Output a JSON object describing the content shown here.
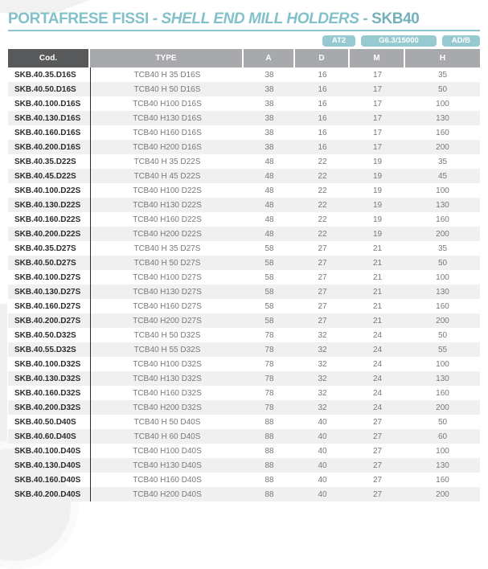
{
  "colors": {
    "teal-title": "#82c1c9",
    "teal-model": "#74b0ba",
    "teal-line": "#8cc4cb",
    "teal-badge": "#97cad0",
    "header-dark": "#58595b",
    "header-gray": "#a7a9ac",
    "row-alt": "#f0f0f1",
    "text-dark": "#2d2d2f",
    "text-gray": "#77787b"
  },
  "title": {
    "italian": "PORTAFRESE FISSI",
    "separator1": " - ",
    "english": "SHELL END MILL HOLDERS",
    "separator2": " - ",
    "model": "SKB40"
  },
  "badges": [
    "AT2",
    "G6.3/15000",
    "AD/B"
  ],
  "table": {
    "columns": [
      "Cod.",
      "TYPE",
      "A",
      "D",
      "M",
      "H"
    ],
    "rows": [
      {
        "cod": "SKB.40.35.D16S",
        "type": "TCB40 H 35 D16S",
        "a": "38",
        "d": "16",
        "m": "17",
        "h": "35"
      },
      {
        "cod": "SKB.40.50.D16S",
        "type": "TCB40 H 50 D16S",
        "a": "38",
        "d": "16",
        "m": "17",
        "h": "50"
      },
      {
        "cod": "SKB.40.100.D16S",
        "type": "TCB40 H100 D16S",
        "a": "38",
        "d": "16",
        "m": "17",
        "h": "100"
      },
      {
        "cod": "SKB.40.130.D16S",
        "type": "TCB40 H130 D16S",
        "a": "38",
        "d": "16",
        "m": "17",
        "h": "130"
      },
      {
        "cod": "SKB.40.160.D16S",
        "type": "TCB40 H160 D16S",
        "a": "38",
        "d": "16",
        "m": "17",
        "h": "160"
      },
      {
        "cod": "SKB.40.200.D16S",
        "type": "TCB40 H200 D16S",
        "a": "38",
        "d": "16",
        "m": "17",
        "h": "200"
      },
      {
        "cod": "SKB.40.35.D22S",
        "type": "TCB40 H 35 D22S",
        "a": "48",
        "d": "22",
        "m": "19",
        "h": "35"
      },
      {
        "cod": "SKB.40.45.D22S",
        "type": "TCB40 H 45 D22S",
        "a": "48",
        "d": "22",
        "m": "19",
        "h": "45"
      },
      {
        "cod": "SKB.40.100.D22S",
        "type": "TCB40 H100 D22S",
        "a": "48",
        "d": "22",
        "m": "19",
        "h": "100"
      },
      {
        "cod": "SKB.40.130.D22S",
        "type": "TCB40 H130 D22S",
        "a": "48",
        "d": "22",
        "m": "19",
        "h": "130"
      },
      {
        "cod": "SKB.40.160.D22S",
        "type": "TCB40 H160 D22S",
        "a": "48",
        "d": "22",
        "m": "19",
        "h": "160"
      },
      {
        "cod": "SKB.40.200.D22S",
        "type": "TCB40 H200 D22S",
        "a": "48",
        "d": "22",
        "m": "19",
        "h": "200"
      },
      {
        "cod": "SKB.40.35.D27S",
        "type": "TCB40 H 35 D27S",
        "a": "58",
        "d": "27",
        "m": "21",
        "h": "35"
      },
      {
        "cod": "SKB.40.50.D27S",
        "type": "TCB40 H 50 D27S",
        "a": "58",
        "d": "27",
        "m": "21",
        "h": "50"
      },
      {
        "cod": "SKB.40.100.D27S",
        "type": "TCB40 H100 D27S",
        "a": "58",
        "d": "27",
        "m": "21",
        "h": "100"
      },
      {
        "cod": "SKB.40.130.D27S",
        "type": "TCB40 H130 D27S",
        "a": "58",
        "d": "27",
        "m": "21",
        "h": "130"
      },
      {
        "cod": "SKB.40.160.D27S",
        "type": "TCB40 H160 D27S",
        "a": "58",
        "d": "27",
        "m": "21",
        "h": "160"
      },
      {
        "cod": "SKB.40.200.D27S",
        "type": "TCB40 H200 D27S",
        "a": "58",
        "d": "27",
        "m": "21",
        "h": "200"
      },
      {
        "cod": "SKB.40.50.D32S",
        "type": "TCB40 H 50 D32S",
        "a": "78",
        "d": "32",
        "m": "24",
        "h": "50"
      },
      {
        "cod": "SKB.40.55.D32S",
        "type": "TCB40 H 55 D32S",
        "a": "78",
        "d": "32",
        "m": "24",
        "h": "55"
      },
      {
        "cod": "SKB.40.100.D32S",
        "type": "TCB40 H100 D32S",
        "a": "78",
        "d": "32",
        "m": "24",
        "h": "100"
      },
      {
        "cod": "SKB.40.130.D32S",
        "type": "TCB40 H130 D32S",
        "a": "78",
        "d": "32",
        "m": "24",
        "h": "130"
      },
      {
        "cod": "SKB.40.160.D32S",
        "type": "TCB40 H160 D32S",
        "a": "78",
        "d": "32",
        "m": "24",
        "h": "160"
      },
      {
        "cod": "SKB.40.200.D32S",
        "type": "TCB40 H200 D32S",
        "a": "78",
        "d": "32",
        "m": "24",
        "h": "200"
      },
      {
        "cod": "SKB.40.50.D40S",
        "type": "TCB40 H 50 D40S",
        "a": "88",
        "d": "40",
        "m": "27",
        "h": "50"
      },
      {
        "cod": "SKB.40.60.D40S",
        "type": "TCB40 H 60 D40S",
        "a": "88",
        "d": "40",
        "m": "27",
        "h": "60"
      },
      {
        "cod": "SKB.40.100.D40S",
        "type": "TCB40 H100 D40S",
        "a": "88",
        "d": "40",
        "m": "27",
        "h": "100"
      },
      {
        "cod": "SKB.40.130.D40S",
        "type": "TCB40 H130 D40S",
        "a": "88",
        "d": "40",
        "m": "27",
        "h": "130"
      },
      {
        "cod": "SKB.40.160.D40S",
        "type": "TCB40 H160 D40S",
        "a": "88",
        "d": "40",
        "m": "27",
        "h": "160"
      },
      {
        "cod": "SKB.40.200.D40S",
        "type": "TCB40 H200 D40S",
        "a": "88",
        "d": "40",
        "m": "27",
        "h": "200"
      }
    ]
  }
}
